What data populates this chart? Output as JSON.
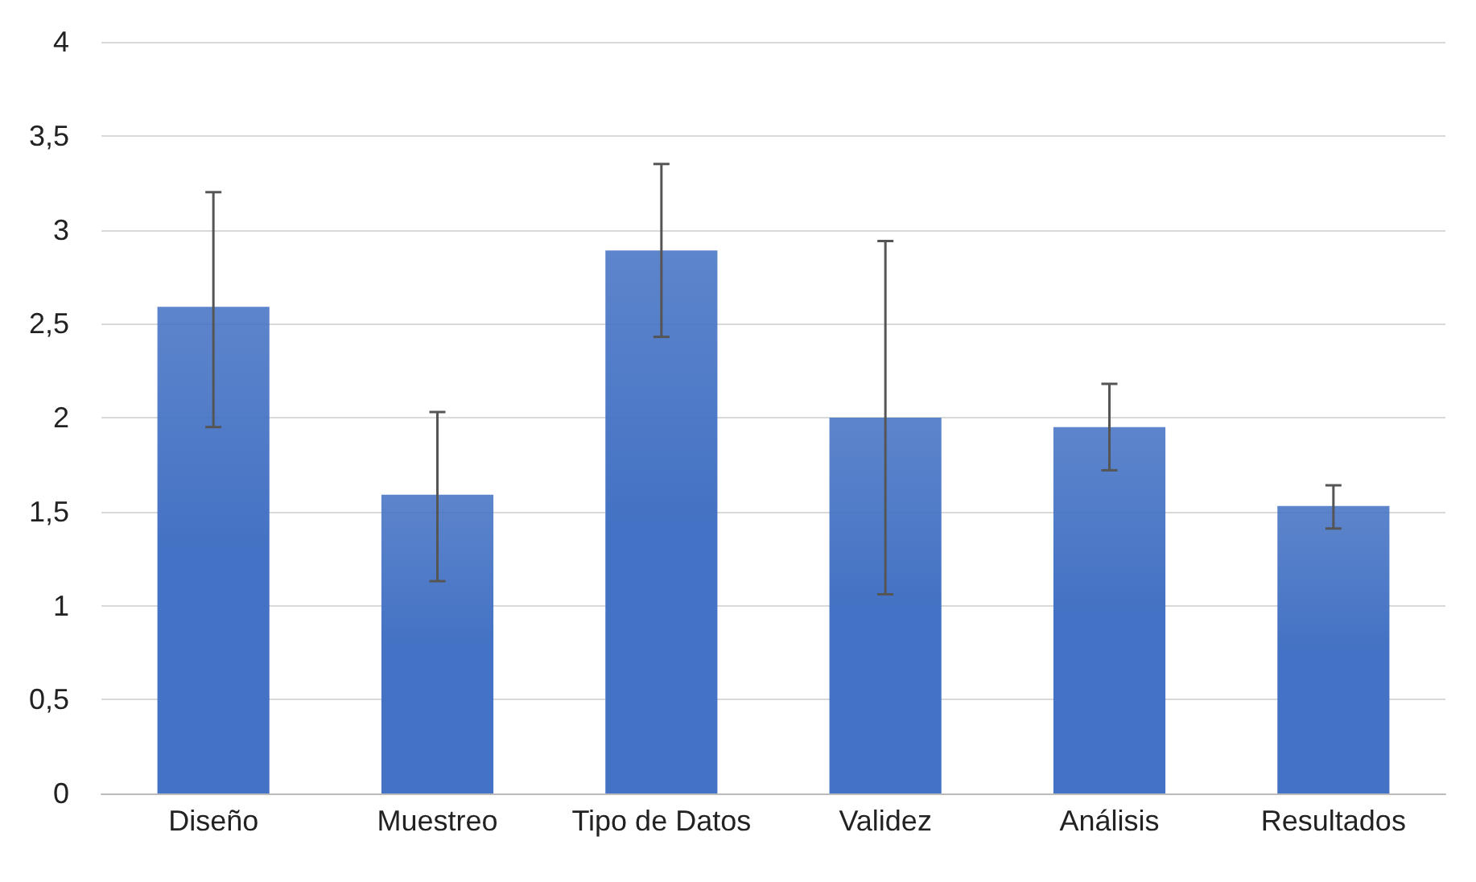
{
  "chart_data": {
    "type": "bar",
    "categories": [
      "Diseño",
      "Muestreo",
      "Tipo de Datos",
      "Validez",
      "Análisis",
      "Resultados"
    ],
    "values": [
      2.59,
      1.59,
      2.89,
      2.0,
      1.95,
      1.53
    ],
    "errors": [
      [
        1.95,
        3.2
      ],
      [
        1.13,
        2.03
      ],
      [
        2.43,
        3.35
      ],
      [
        1.06,
        2.94
      ],
      [
        1.72,
        2.18
      ],
      [
        1.41,
        1.64
      ]
    ],
    "color": "#4472c4",
    "ylim": [
      0,
      4
    ],
    "yticks": [
      0,
      {
        "value": 0.5,
        "label": "0,5"
      },
      1,
      {
        "value": 1.5,
        "label": "1,5"
      },
      2,
      {
        "value": 2.5,
        "label": "2,5"
      },
      3,
      {
        "value": 3.5,
        "label": "3,5"
      },
      4
    ],
    "grid": true
  }
}
